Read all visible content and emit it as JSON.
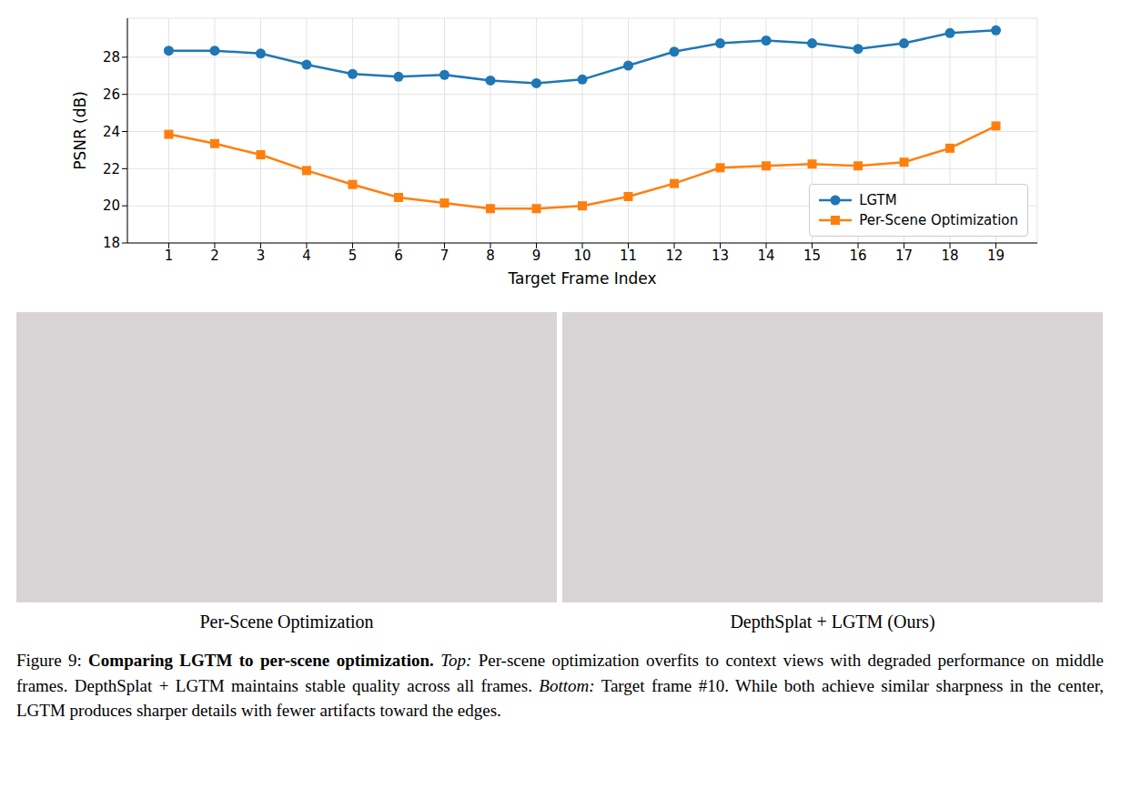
{
  "chart_data": {
    "type": "line",
    "x_label": "Target Frame Index",
    "y_label": "PSNR (dB)",
    "x": [
      1,
      2,
      3,
      4,
      5,
      6,
      7,
      8,
      9,
      10,
      11,
      12,
      13,
      14,
      15,
      16,
      17,
      18,
      19
    ],
    "xlim": [
      0.1,
      19.9
    ],
    "xticks": [
      1,
      2,
      3,
      4,
      5,
      6,
      7,
      8,
      9,
      10,
      11,
      12,
      13,
      14,
      15,
      16,
      17,
      18,
      19
    ],
    "ylim": [
      18,
      30.1
    ],
    "yticks": [
      18,
      20,
      22,
      24,
      26,
      28
    ],
    "grid": true,
    "legend": "lower right",
    "series": [
      {
        "name": "LGTM",
        "color": "#1f77b4",
        "marker": "circle",
        "line_style": "solid",
        "values": [
          28.35,
          28.35,
          28.2,
          27.6,
          27.1,
          26.95,
          27.05,
          26.75,
          26.6,
          26.8,
          27.55,
          28.3,
          28.75,
          28.9,
          28.75,
          28.45,
          28.75,
          29.3,
          29.45
        ]
      },
      {
        "name": "Per-Scene Optimization",
        "color": "#ff7f0e",
        "marker": "square",
        "line_style": "solid",
        "values": [
          23.85,
          23.35,
          22.75,
          21.9,
          21.15,
          20.45,
          20.15,
          19.85,
          19.85,
          20.0,
          20.5,
          21.2,
          22.05,
          22.15,
          22.25,
          22.15,
          22.35,
          23.1,
          24.3
        ]
      }
    ]
  },
  "image_captions": [
    "Per-Scene Optimization",
    "DepthSplat + LGTM (Ours)"
  ],
  "caption": {
    "label": "Figure 9:",
    "title": "Comparing LGTM to per-scene optimization.",
    "parts": [
      {
        "head": "Top:",
        "text": "Per-scene optimization overfits to context views with degraded performance on middle frames. DepthSplat + LGTM maintains stable quality across all frames."
      },
      {
        "head": "Bottom:",
        "text": "Target frame #10. While both achieve similar sharpness in the center, LGTM produces sharper details with fewer artifacts toward the edges."
      }
    ]
  }
}
